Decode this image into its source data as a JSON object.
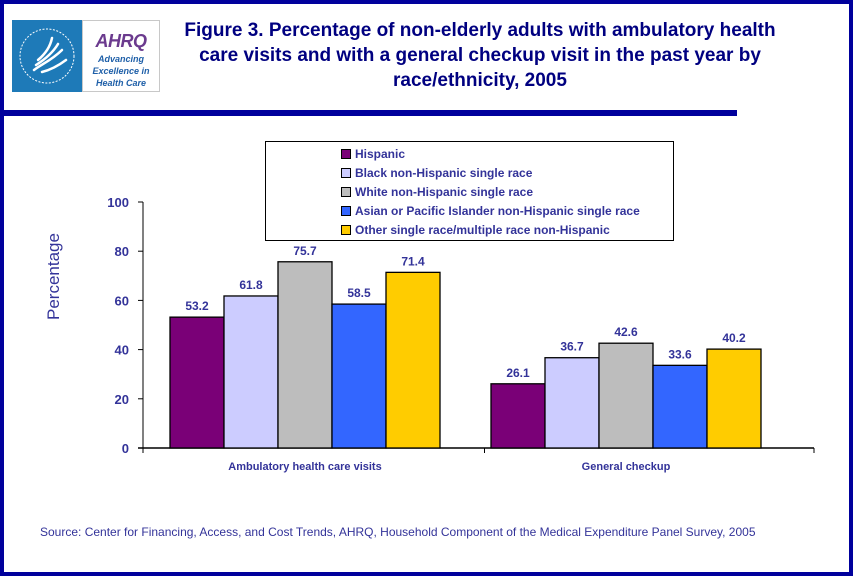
{
  "logo": {
    "agency_seal": "Department of Health & Human Services USA",
    "brand": "AHRQ",
    "tagline_lines": [
      "Advancing",
      "Excellence in",
      "Health Care"
    ]
  },
  "title": "Figure 3. Percentage of non-elderly adults with ambulatory health care visits and with a general checkup visit in the past year by race/ethnicity, 2005",
  "source": "Source: Center for Financing, Access, and Cost Trends, AHRQ, Household Component of the Medical Expenditure Panel Survey, 2005",
  "colors": {
    "frame": "#00009c",
    "text": "#333399",
    "title": "#000080"
  },
  "chart_data": {
    "type": "bar",
    "title": "Figure 3. Percentage of non-elderly adults with ambulatory health care visits and with a general checkup visit in the past year by race/ethnicity, 2005",
    "xlabel": "",
    "ylabel": "Percentage",
    "ylim": [
      0,
      100
    ],
    "yticks": [
      0,
      20,
      40,
      60,
      80,
      100
    ],
    "grid": false,
    "legend_position": "top-center",
    "categories": [
      "Ambulatory health care visits",
      "General checkup"
    ],
    "series": [
      {
        "name": "Hispanic",
        "color": "#7a0077",
        "values": [
          53.2,
          26.1
        ],
        "labels": [
          "53.2",
          "26.1"
        ]
      },
      {
        "name": "Black non-Hispanic single race",
        "color": "#ccccff",
        "values": [
          61.8,
          36.7
        ],
        "labels": [
          "61.8",
          "36.7"
        ]
      },
      {
        "name": "White non-Hispanic single race",
        "color": "#bdbdbd",
        "values": [
          75.7,
          42.6
        ],
        "labels": [
          "75.7",
          "42.6"
        ]
      },
      {
        "name": "Asian or Pacific Islander non-Hispanic single race",
        "color": "#3366ff",
        "values": [
          58.5,
          33.6
        ],
        "labels": [
          "58.5",
          "33.6"
        ]
      },
      {
        "name": "Other single race/multiple race non-Hispanic",
        "color": "#ffcc00",
        "values": [
          71.4,
          40.2
        ],
        "labels": [
          "71.4",
          "40.2"
        ]
      }
    ]
  }
}
